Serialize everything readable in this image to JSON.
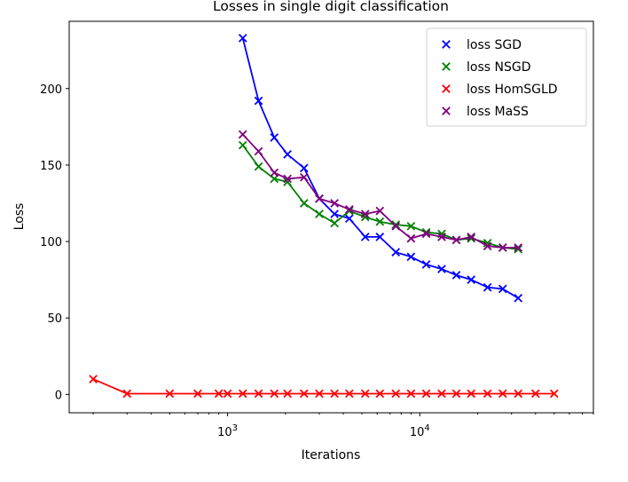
{
  "chart_data": {
    "type": "line",
    "title": "Losses in single digit classification",
    "xlabel": "Iterations",
    "ylabel": "Loss",
    "xscale": "log",
    "xlim": [
      150,
      80000
    ],
    "ylim": [
      -12,
      244
    ],
    "yticks": [
      0,
      50,
      100,
      150,
      200
    ],
    "xticks": [
      {
        "value": 1000,
        "base": "10",
        "exp": "3"
      },
      {
        "value": 10000,
        "base": "10",
        "exp": "4"
      }
    ],
    "grid": false,
    "legend_position": "upper right",
    "series": [
      {
        "name": "loss SGD",
        "color": "#0000ff",
        "x": [
          1200,
          1450,
          1750,
          2050,
          2500,
          3000,
          3600,
          4300,
          5200,
          6200,
          7500,
          9000,
          10800,
          13000,
          15500,
          18500,
          22500,
          27000,
          32500
        ],
        "y": [
          233,
          192,
          168,
          157,
          148,
          128,
          118,
          115,
          103,
          103,
          93,
          90,
          85,
          82,
          78,
          75,
          70,
          69,
          63
        ]
      },
      {
        "name": "loss NSGD",
        "color": "#008000",
        "x": [
          1200,
          1450,
          1750,
          2050,
          2500,
          3000,
          3600,
          4300,
          5200,
          6200,
          7500,
          9000,
          10800,
          13000,
          15500,
          18500,
          22500,
          27000,
          32500
        ],
        "y": [
          163,
          149,
          141,
          139,
          125,
          118,
          112,
          120,
          116,
          113,
          111,
          110,
          106,
          105,
          101,
          102,
          99,
          96,
          95
        ]
      },
      {
        "name": "loss HomSGLD",
        "color": "#ff0000",
        "x": [
          200,
          300,
          500,
          700,
          900,
          1000,
          1200,
          1450,
          1750,
          2050,
          2500,
          3000,
          3600,
          4300,
          5200,
          6200,
          7500,
          9000,
          10800,
          13000,
          15500,
          18500,
          22500,
          27000,
          32500,
          40000,
          50000
        ],
        "y": [
          10,
          0.5,
          0.5,
          0.5,
          0.5,
          0.5,
          0.5,
          0.5,
          0.5,
          0.5,
          0.5,
          0.5,
          0.5,
          0.5,
          0.5,
          0.5,
          0.5,
          0.5,
          0.5,
          0.5,
          0.5,
          0.5,
          0.5,
          0.5,
          0.5,
          0.5,
          0.5
        ]
      },
      {
        "name": "loss MaSS",
        "color": "#800080",
        "x": [
          1200,
          1450,
          1750,
          2050,
          2500,
          3000,
          3600,
          4300,
          5200,
          6200,
          7500,
          9000,
          10800,
          13000,
          15500,
          18500,
          22500,
          27000,
          32500
        ],
        "y": [
          170,
          159,
          145,
          141,
          142,
          128,
          125,
          121,
          118,
          120,
          110,
          102,
          105,
          103,
          101,
          103,
          97,
          96,
          96
        ]
      }
    ]
  }
}
